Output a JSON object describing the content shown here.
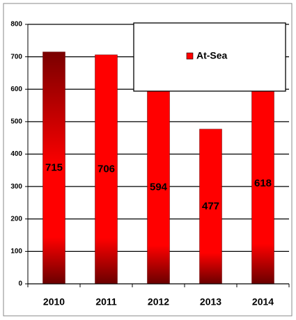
{
  "chart_data": {
    "type": "bar",
    "categories": [
      "2010",
      "2011",
      "2012",
      "2013",
      "2014"
    ],
    "series": [
      {
        "name": "At-Sea",
        "color": "#ff0000",
        "values": [
          715,
          706,
          594,
          477,
          618
        ]
      }
    ],
    "point_colors": [
      "#7a0000",
      "#ff0000",
      "#ff0000",
      "#ff0000",
      "#ff0000"
    ],
    "ylim": [
      0,
      800
    ],
    "yticks": [
      0,
      100,
      200,
      300,
      400,
      500,
      600,
      700,
      800
    ],
    "grid": true,
    "legend": "upper right"
  }
}
